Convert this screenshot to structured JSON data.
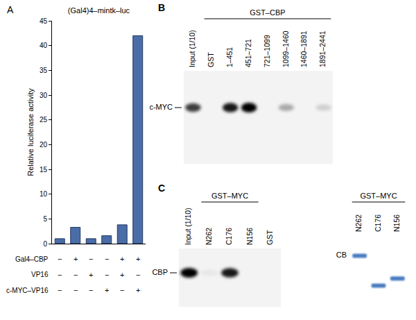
{
  "chart_data": {
    "type": "bar",
    "panel": "A",
    "title": "(Gal4)4–mintk–luc",
    "y_label": "Relative luciferase activity",
    "categories": [
      null,
      null,
      null,
      null,
      null,
      null
    ],
    "values": [
      1,
      3.3,
      1,
      1.6,
      3.8,
      42
    ],
    "color": "#4a6da7",
    "ylim": [
      0,
      45
    ],
    "yticks": [
      0,
      5,
      10,
      15,
      20,
      25,
      30,
      35,
      40,
      45
    ],
    "grid": false,
    "tick_labels": "y",
    "conditions": [
      {
        "name": "Gal4–CBP",
        "signs": [
          "−",
          "+",
          "−",
          "−",
          "+",
          "+"
        ]
      },
      {
        "name": "VP16",
        "signs": [
          "−",
          "−",
          "+",
          "−",
          "+",
          "−"
        ]
      },
      {
        "name": "c-MYC–VP16",
        "signs": [
          "−",
          "−",
          "−",
          "+",
          "−",
          "+"
        ]
      }
    ]
  },
  "blots": [
    {
      "panel": "B",
      "row_label": "c-MYC",
      "group": {
        "label": "GST–CBP",
        "lanes": [
          "GST",
          "1–451",
          "451–721",
          "721–1099",
          "1099–1460",
          "1460–1891",
          "1891–2441"
        ]
      },
      "lanes": [
        {
          "label": "Input (1/10)",
          "band": 0.75
        },
        {
          "label": "GST",
          "band": 0
        },
        {
          "label": "1–451",
          "band": 0.9
        },
        {
          "label": "451–721",
          "band": 1
        },
        {
          "label": "721–1099",
          "band": 0
        },
        {
          "label": "1099–1460",
          "band": 0.3
        },
        {
          "label": "1460–1891",
          "band": 0
        },
        {
          "label": "1891–2441",
          "band": 0.15
        }
      ]
    },
    {
      "panel": "C",
      "row_label": "CBP",
      "group": {
        "label": "GST–MYC",
        "lanes": [
          "N262",
          "C176",
          "N156"
        ]
      },
      "lanes": [
        {
          "label": "Input (1/10)",
          "band": 1
        },
        {
          "label": "N262",
          "band": 0.05
        },
        {
          "label": "C176",
          "band": 0.9
        },
        {
          "label": "N156",
          "band": 0
        },
        {
          "label": "GST",
          "band": 0
        }
      ]
    },
    {
      "stain_label": "CB",
      "color": "#4a7cc0",
      "group": {
        "label": "GST–MYC",
        "lanes": [
          "N262",
          "C176",
          "N156"
        ]
      },
      "lanes": [
        {
          "label": "N262",
          "band_position": 0.28
        },
        {
          "label": "C176",
          "band_position": 0.7
        },
        {
          "label": "N156",
          "band_position": 0.6
        }
      ]
    }
  ]
}
